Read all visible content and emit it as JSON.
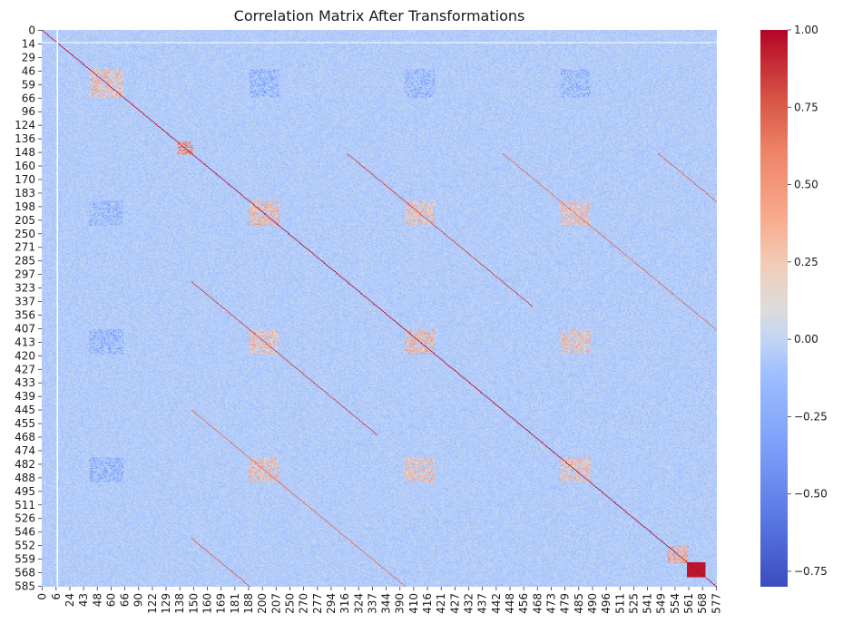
{
  "chart_data": {
    "type": "heatmap",
    "title": "Correlation Matrix After Transformations",
    "xlabel": "",
    "ylabel": "",
    "n_features": 586,
    "y_tick_labels": [
      "0",
      "14",
      "29",
      "46",
      "59",
      "66",
      "96",
      "124",
      "136",
      "148",
      "160",
      "170",
      "183",
      "198",
      "205",
      "250",
      "271",
      "285",
      "297",
      "323",
      "337",
      "356",
      "407",
      "413",
      "420",
      "427",
      "433",
      "439",
      "445",
      "455",
      "468",
      "474",
      "482",
      "488",
      "495",
      "511",
      "526",
      "546",
      "552",
      "559",
      "568",
      "585"
    ],
    "x_tick_labels": [
      "0",
      "6",
      "24",
      "43",
      "48",
      "60",
      "66",
      "90",
      "122",
      "129",
      "138",
      "150",
      "160",
      "169",
      "181",
      "188",
      "200",
      "207",
      "250",
      "270",
      "277",
      "294",
      "316",
      "324",
      "337",
      "344",
      "390",
      "410",
      "416",
      "421",
      "427",
      "432",
      "437",
      "442",
      "448",
      "456",
      "468",
      "473",
      "479",
      "485",
      "490",
      "496",
      "511",
      "525",
      "541",
      "549",
      "554",
      "561",
      "568",
      "577"
    ],
    "value_range": [
      -0.8,
      1.0
    ],
    "diagonal_value": 1.0,
    "background_value": -0.05,
    "colorbar": {
      "ticks": [
        1.0,
        0.75,
        0.5,
        0.25,
        0.0,
        -0.25,
        -0.5,
        -0.75
      ],
      "tick_labels": [
        "1.00",
        "0.75",
        "0.50",
        "0.25",
        "0.00",
        "−0.25",
        "−0.50",
        "−0.75"
      ],
      "colormap": "coolwarm",
      "color_low": "#3b4cc0",
      "color_mid": "#dddddd",
      "color_high": "#b40426"
    },
    "blank_feature": 13,
    "correlated_blocks": [
      {
        "rows": [
          41,
          70
        ],
        "cols": [
          41,
          70
        ],
        "value": 0.3
      },
      {
        "rows": [
          180,
          205
        ],
        "cols": [
          180,
          205
        ],
        "value": 0.35
      },
      {
        "rows": [
          315,
          340
        ],
        "cols": [
          315,
          340
        ],
        "value": 0.35
      },
      {
        "rows": [
          450,
          475
        ],
        "cols": [
          450,
          475
        ],
        "value": 0.3
      },
      {
        "rows": [
          41,
          70
        ],
        "cols": [
          180,
          205
        ],
        "value": -0.2
      },
      {
        "rows": [
          41,
          70
        ],
        "cols": [
          315,
          340
        ],
        "value": -0.2
      },
      {
        "rows": [
          41,
          70
        ],
        "cols": [
          450,
          475
        ],
        "value": -0.2
      },
      {
        "rows": [
          180,
          205
        ],
        "cols": [
          315,
          340
        ],
        "value": 0.3
      },
      {
        "rows": [
          180,
          205
        ],
        "cols": [
          450,
          475
        ],
        "value": 0.3
      },
      {
        "rows": [
          315,
          340
        ],
        "cols": [
          450,
          475
        ],
        "value": 0.3
      },
      {
        "rows": [
          543,
          560
        ],
        "cols": [
          543,
          560
        ],
        "value": 0.45
      },
      {
        "rows": [
          118,
          130
        ],
        "cols": [
          118,
          130
        ],
        "value": 0.6
      }
    ],
    "off_diagonal_bands": [
      {
        "offset": 135,
        "start": 130,
        "end": 290,
        "value": 0.85
      },
      {
        "offset": 270,
        "start": 130,
        "end": 320,
        "value": 0.7
      },
      {
        "offset": 405,
        "start": 130,
        "end": 180,
        "value": 0.75
      }
    ],
    "strong_diagonal_blocks": [
      {
        "start": 560,
        "end": 575,
        "value": 0.95
      }
    ]
  }
}
